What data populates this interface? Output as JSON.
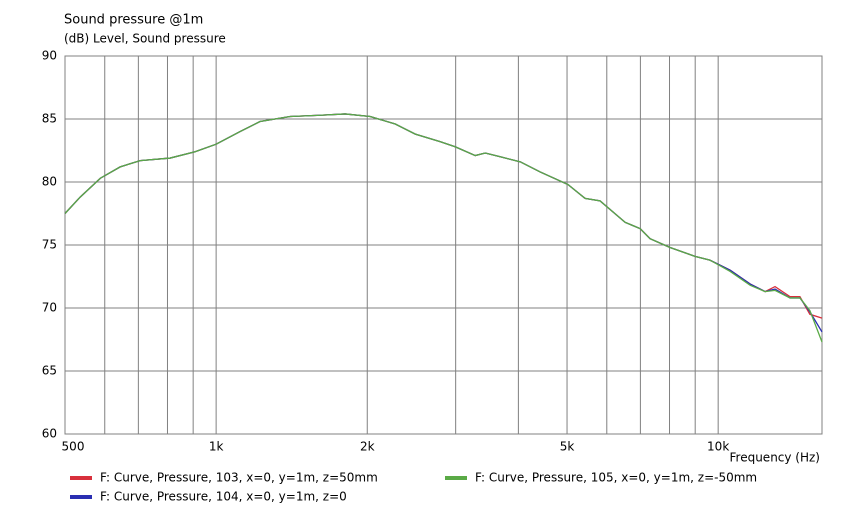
{
  "chart_data": {
    "type": "line",
    "title": "Sound pressure @1m",
    "ylabel": "(dB)  Level, Sound pressure",
    "xlabel": "Frequency  (Hz)",
    "xscale": "log",
    "grid": true,
    "xlim": [
      500,
      16100
    ],
    "ylim": [
      60,
      90
    ],
    "xticks": [
      {
        "value": 500,
        "label": "500"
      },
      {
        "value": 1000,
        "label": "1k"
      },
      {
        "value": 2000,
        "label": "2k"
      },
      {
        "value": 5000,
        "label": "5k"
      },
      {
        "value": 10000,
        "label": "10k"
      }
    ],
    "xminor": [
      600,
      700,
      800,
      900,
      3000,
      4000,
      6000,
      7000,
      8000,
      9000
    ],
    "yticks": [
      60,
      65,
      70,
      75,
      80,
      85,
      90
    ],
    "x": [
      500,
      536,
      588,
      644,
      706,
      810,
      908,
      1000,
      1116,
      1223,
      1404,
      1611,
      1807,
      2027,
      2274,
      2493,
      2793,
      2993,
      3282,
      3436,
      3681,
      4035,
      4420,
      5022,
      5431,
      5817,
      6527,
      6993,
      7318,
      8021,
      8993,
      9627,
      10566,
      11585,
      12404,
      12981,
      13904,
      14550,
      15229,
      16100
    ],
    "series": [
      {
        "name": "F: Curve, Pressure, 103, x=0, y=1m, z=50mm",
        "color": "#d8303c",
        "values": [
          77.5,
          78.8,
          80.3,
          81.2,
          81.7,
          81.9,
          82.4,
          83.0,
          84.0,
          84.8,
          85.2,
          85.3,
          85.4,
          85.2,
          84.6,
          83.8,
          83.2,
          82.8,
          82.1,
          82.3,
          82.0,
          81.6,
          80.8,
          79.8,
          78.7,
          78.5,
          76.8,
          76.3,
          75.5,
          74.8,
          74.1,
          73.8,
          73.0,
          71.9,
          71.3,
          71.7,
          70.9,
          70.9,
          69.5,
          69.2
        ]
      },
      {
        "name": "F: Curve, Pressure, 104, x=0, y=1m, z=0",
        "color": "#2a2eb2",
        "values": [
          77.5,
          78.8,
          80.3,
          81.2,
          81.7,
          81.9,
          82.4,
          83.0,
          84.0,
          84.8,
          85.2,
          85.3,
          85.4,
          85.2,
          84.6,
          83.8,
          83.2,
          82.8,
          82.1,
          82.3,
          82.0,
          81.6,
          80.8,
          79.8,
          78.7,
          78.5,
          76.8,
          76.3,
          75.5,
          74.8,
          74.1,
          73.8,
          73.0,
          71.9,
          71.3,
          71.5,
          70.8,
          70.8,
          69.7,
          68.1
        ]
      },
      {
        "name": "F: Curve, Pressure, 105, x=0, y=1m, z=-50mm",
        "color": "#5aaa46",
        "values": [
          77.5,
          78.8,
          80.3,
          81.2,
          81.7,
          81.9,
          82.4,
          83.0,
          84.0,
          84.8,
          85.2,
          85.3,
          85.4,
          85.2,
          84.6,
          83.8,
          83.2,
          82.8,
          82.1,
          82.3,
          82.0,
          81.6,
          80.8,
          79.8,
          78.7,
          78.5,
          76.8,
          76.3,
          75.5,
          74.8,
          74.1,
          73.8,
          72.9,
          71.8,
          71.3,
          71.4,
          70.8,
          70.8,
          69.8,
          67.3
        ]
      }
    ]
  }
}
